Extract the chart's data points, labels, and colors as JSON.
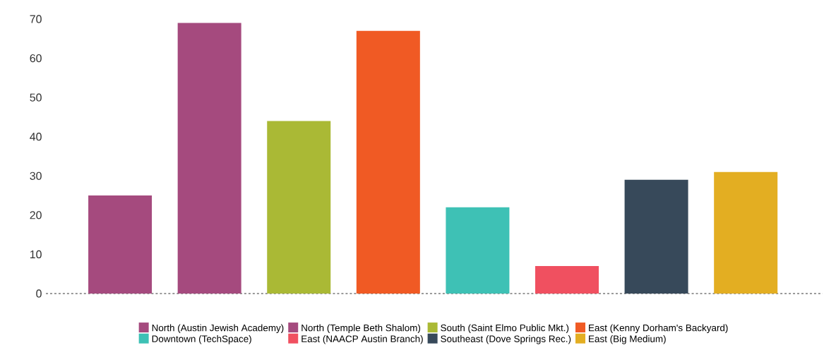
{
  "chart_data": {
    "type": "bar",
    "categories": [
      null,
      null,
      null,
      null,
      null,
      null,
      null,
      null
    ],
    "series": [
      {
        "name": "North (Austin Jewish Academy)",
        "color": "#a54a7e",
        "values": [
          25,
          null,
          null,
          null,
          null,
          null,
          null,
          null
        ]
      },
      {
        "name": "North (Temple Beth Shalom)",
        "color": "#a54a7e",
        "values": [
          null,
          69,
          null,
          null,
          null,
          null,
          null,
          null
        ]
      },
      {
        "name": "South (Saint Elmo Public Mkt.)",
        "color": "#aab935",
        "values": [
          null,
          null,
          44,
          null,
          null,
          null,
          null,
          null
        ]
      },
      {
        "name": "East (Kenny Dorham's Backyard)",
        "color": "#f05a24",
        "values": [
          null,
          null,
          null,
          67,
          null,
          null,
          null,
          null
        ]
      },
      {
        "name": "Downtown (TechSpace)",
        "color": "#3ec1b5",
        "values": [
          null,
          null,
          null,
          null,
          22,
          null,
          null,
          null
        ]
      },
      {
        "name": "East (NAACP Austin Branch)",
        "color": "#f05060",
        "values": [
          null,
          null,
          null,
          null,
          null,
          7,
          null,
          null
        ]
      },
      {
        "name": "Southeast (Dove Springs Rec.)",
        "color": "#37495a",
        "values": [
          null,
          null,
          null,
          null,
          null,
          null,
          29,
          null
        ]
      },
      {
        "name": "East (Big Medium)",
        "color": "#e3ae22",
        "values": [
          null,
          null,
          null,
          null,
          null,
          null,
          null,
          31
        ]
      }
    ],
    "ylim": [
      0,
      70
    ],
    "yticks": [
      0,
      10,
      20,
      30,
      40,
      50,
      60,
      70
    ],
    "grid": false,
    "legend": "bottom",
    "tick_labels": "y"
  }
}
